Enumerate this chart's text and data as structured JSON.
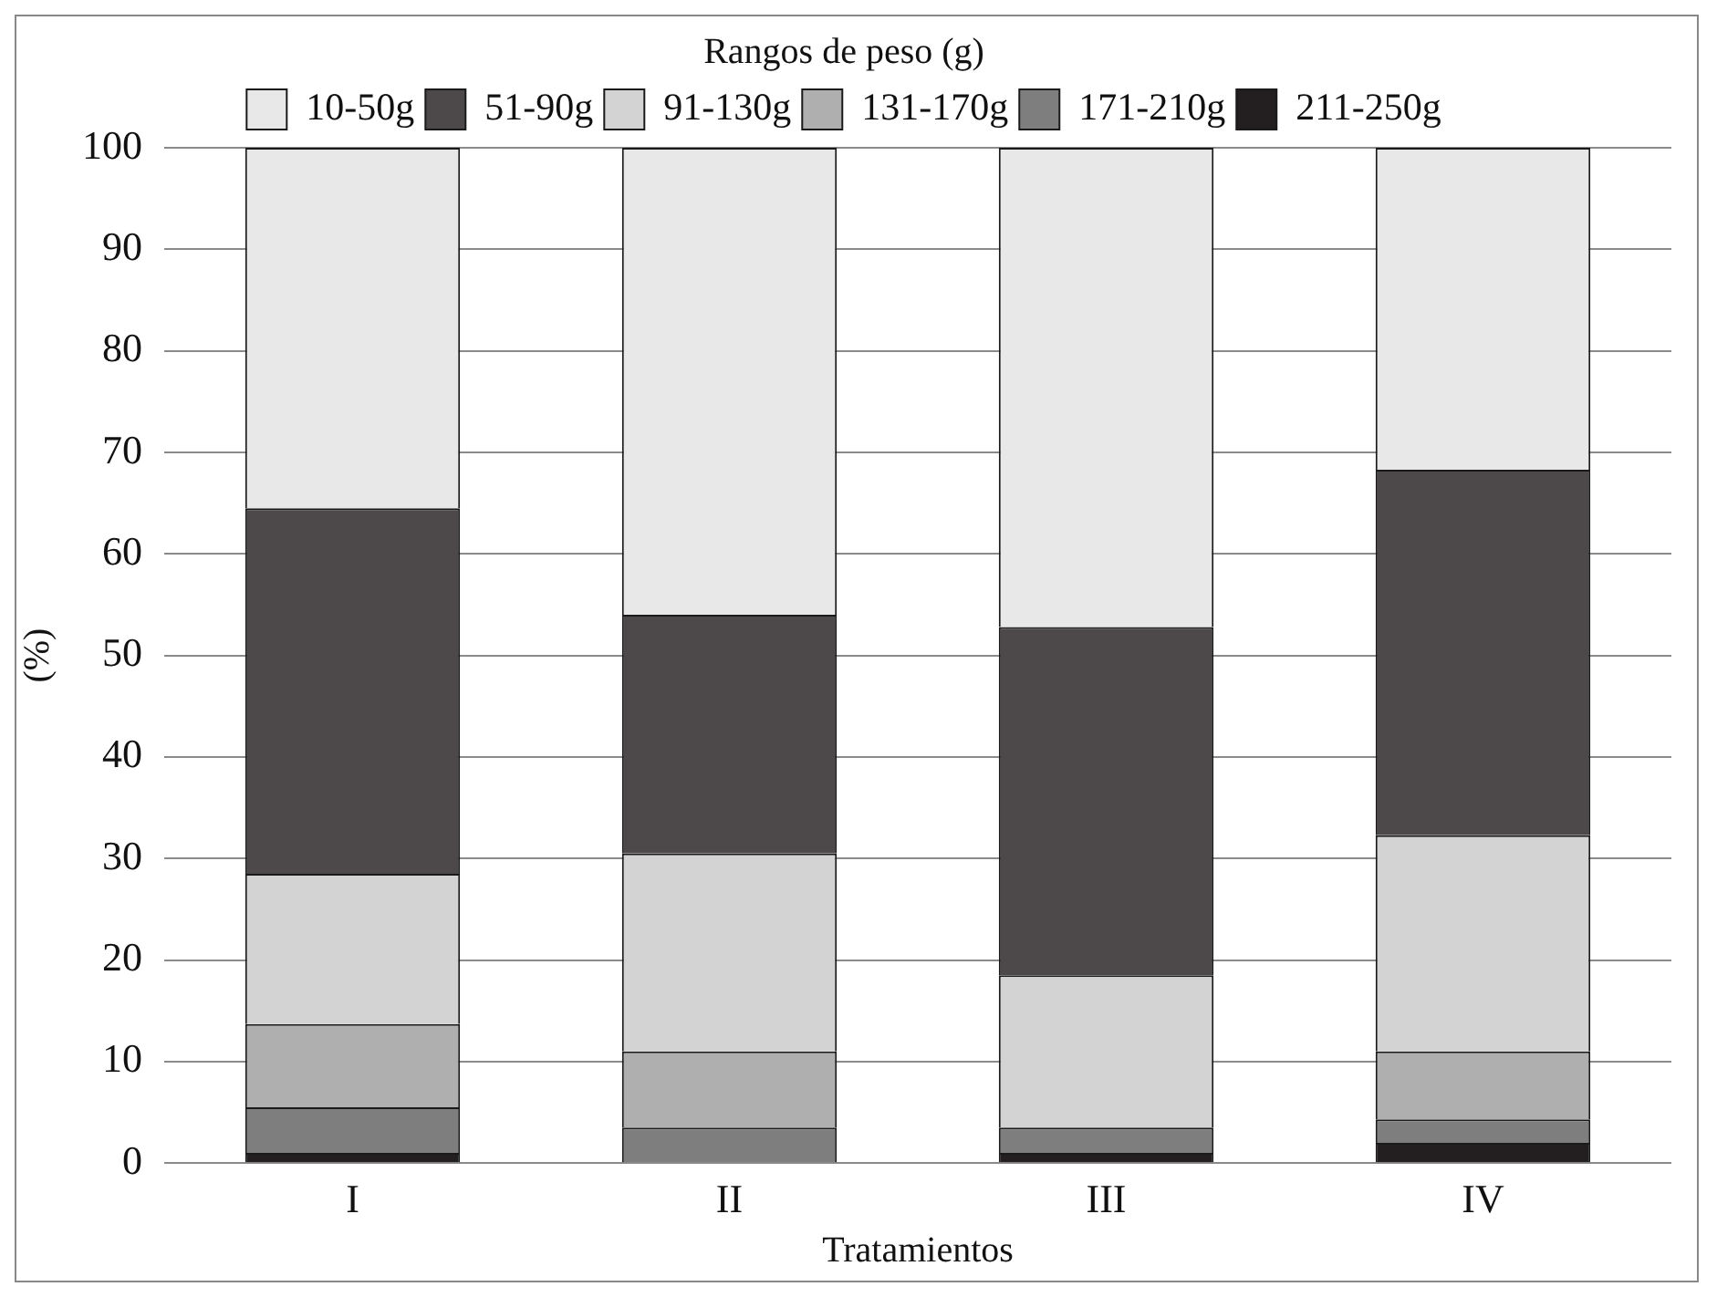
{
  "chart_data": {
    "type": "bar",
    "stacked": true,
    "legend_title": "Rangos de peso (g)",
    "xlabel": "Tratamientos",
    "ylabel": "(%)",
    "categories": [
      "I",
      "II",
      "III",
      "IV"
    ],
    "series": [
      {
        "name": "211-250g",
        "color": "#231f20",
        "values": [
          1,
          0,
          1,
          2
        ]
      },
      {
        "name": "171-210g",
        "color": "#7f7e7e",
        "values": [
          4.5,
          3.5,
          2.5,
          2.3
        ]
      },
      {
        "name": "131-170g",
        "color": "#b0afaf",
        "values": [
          8.2,
          7.5,
          0,
          6.7
        ]
      },
      {
        "name": "91-130g",
        "color": "#d3d3d3",
        "values": [
          14.8,
          19.5,
          15,
          21.3
        ]
      },
      {
        "name": "51-90g",
        "color": "#4d494a",
        "values": [
          36,
          23.5,
          34.3,
          36
        ]
      },
      {
        "name": "10-50g",
        "color": "#e8e8e8",
        "values": [
          35.5,
          46,
          47.2,
          31.7
        ]
      }
    ],
    "ylim": [
      0,
      100
    ],
    "yticks": [
      0,
      10,
      20,
      30,
      40,
      50,
      60,
      70,
      80,
      90,
      100
    ],
    "grid": "y",
    "legend": "top"
  }
}
